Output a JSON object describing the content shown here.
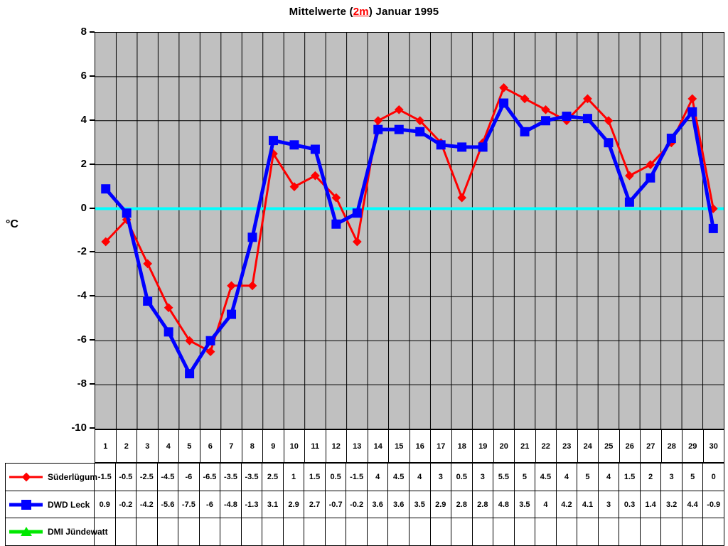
{
  "title": {
    "prefix": "Mittelwerte (",
    "highlight": "2m",
    "suffix": ") Januar 1995",
    "highlight_color": "#ff0000"
  },
  "y_axis": {
    "unit": "°C",
    "ticks": [
      "8",
      "6",
      "4",
      "2",
      "0",
      "-2",
      "-4",
      "-6",
      "-8",
      "-10"
    ]
  },
  "chart_data": {
    "type": "line",
    "title": "Mittelwerte (2m) Januar 1995",
    "x": [
      1,
      2,
      3,
      4,
      5,
      6,
      7,
      8,
      9,
      10,
      11,
      12,
      13,
      14,
      15,
      16,
      17,
      18,
      19,
      20,
      21,
      22,
      23,
      24,
      25,
      26,
      27,
      28,
      29,
      30
    ],
    "ylabel": "°C",
    "ylim": [
      -10,
      8
    ],
    "ytick_step": 2,
    "grid": true,
    "plot_bg": "#C0C0C0",
    "grid_color": "#000000",
    "zero_line_color": "#00FFFF",
    "legend_position": "table-left",
    "series": [
      {
        "name": "Süderlügum",
        "color": "#FF0000",
        "marker": "diamond",
        "line_width": 3,
        "values": [
          -1.5,
          -0.5,
          -2.5,
          -4.5,
          -6,
          -6.5,
          -3.5,
          -3.5,
          2.5,
          1,
          1.5,
          0.5,
          -1.5,
          4,
          4.5,
          4,
          3,
          0.5,
          3,
          5.5,
          5,
          4.5,
          4,
          5,
          4,
          1.5,
          2,
          3,
          5,
          0
        ]
      },
      {
        "name": "DWD Leck",
        "color": "#0000FF",
        "marker": "square",
        "line_width": 5,
        "values": [
          0.9,
          -0.2,
          -4.2,
          -5.6,
          -7.5,
          -6,
          -4.8,
          -1.3,
          3.1,
          2.9,
          2.7,
          -0.7,
          -0.2,
          3.6,
          3.6,
          3.5,
          2.9,
          2.8,
          2.8,
          4.8,
          3.5,
          4,
          4.2,
          4.1,
          3,
          0.3,
          1.4,
          3.2,
          4.4,
          -0.9
        ]
      },
      {
        "name": "DMI Jündewatt",
        "color": "#00E800",
        "marker": "triangle",
        "line_width": 5,
        "values": []
      }
    ]
  }
}
